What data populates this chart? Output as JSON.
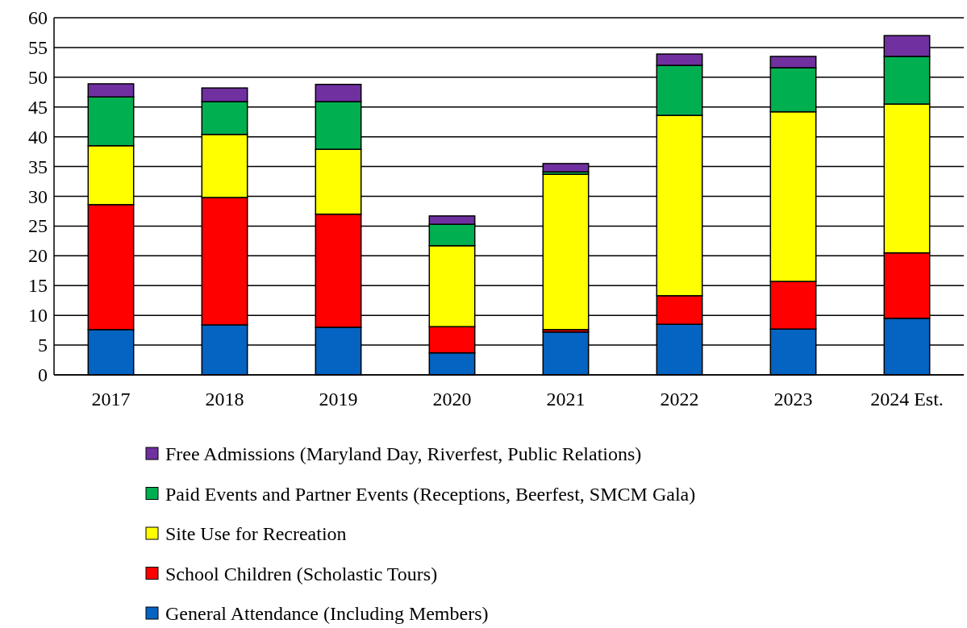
{
  "chart_data": {
    "type": "bar",
    "stacked": true,
    "categories": [
      "2017",
      "2018",
      "2019",
      "2020",
      "2021",
      "2022",
      "2023",
      "2024 Est."
    ],
    "series": [
      {
        "name": "General Attendance (Including Members)",
        "color": "#0563c1",
        "values": [
          7.6,
          8.4,
          8.0,
          3.7,
          7.2,
          8.5,
          7.7,
          9.5
        ]
      },
      {
        "name": "School Children (Scholastic Tours)",
        "color": "#ff0000",
        "values": [
          21.0,
          21.4,
          19.0,
          4.4,
          0.4,
          4.8,
          8.0,
          11.0
        ]
      },
      {
        "name": "Site Use for Recreation",
        "color": "#ffff00",
        "values": [
          9.9,
          10.6,
          10.9,
          13.6,
          26.1,
          30.3,
          28.5,
          25.0
        ]
      },
      {
        "name": "Paid Events and Partner Events (Receptions, Beerfest, SMCM Gala)",
        "color": "#00b050",
        "values": [
          8.2,
          5.5,
          8.0,
          3.6,
          0.4,
          8.4,
          7.4,
          8.0
        ]
      },
      {
        "name": "Free Admissions (Maryland Day, Riverfest, Public Relations)",
        "color": "#7030a0",
        "values": [
          2.2,
          2.3,
          2.9,
          1.4,
          1.4,
          1.9,
          1.9,
          3.5
        ]
      }
    ],
    "ylim": [
      0,
      60
    ],
    "yticks": [
      0,
      5,
      10,
      15,
      20,
      25,
      30,
      35,
      40,
      45,
      50,
      55,
      60
    ],
    "grid": "y",
    "legend": "bottom"
  }
}
